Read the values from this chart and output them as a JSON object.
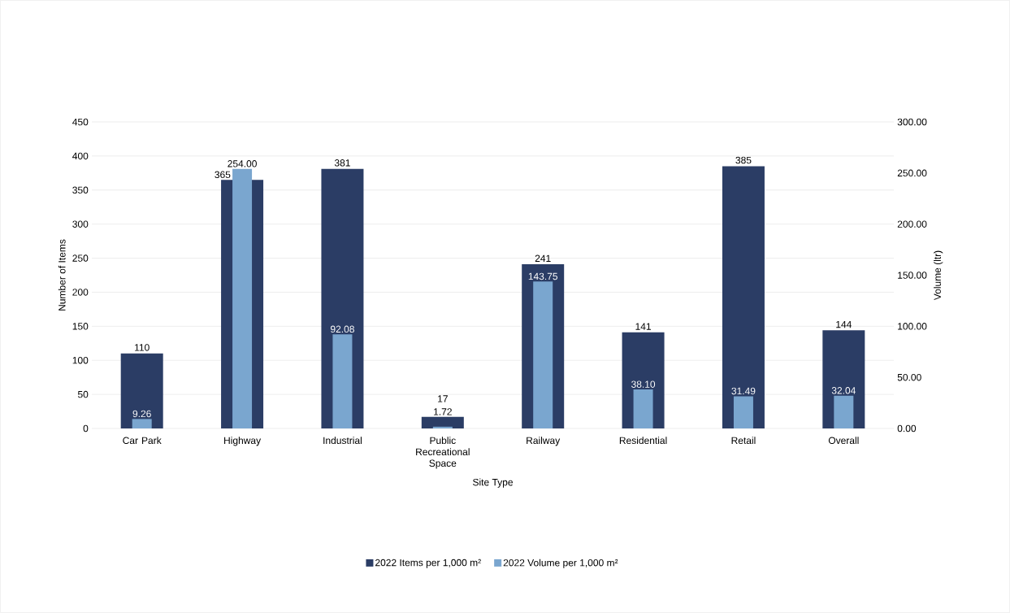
{
  "chart_data": {
    "type": "bar",
    "categories": [
      "Car Park",
      "Highway",
      "Industrial",
      "Public Recreational Space",
      "Railway",
      "Residential",
      "Retail",
      "Overall"
    ],
    "series": [
      {
        "name": "2022 Items per 1,000 m²",
        "color": "#2b3d65",
        "values": [
          110,
          365,
          381,
          17,
          241,
          141,
          385,
          144
        ],
        "value_labels": [
          "110",
          "365",
          "381",
          "17",
          "241",
          "141",
          "385",
          "144"
        ]
      },
      {
        "name": "2022 Volume per 1,000 m²",
        "color": "#7aa6cf",
        "axis": "y2",
        "values": [
          9.26,
          254.0,
          92.08,
          1.72,
          143.75,
          38.1,
          31.49,
          32.04
        ],
        "value_labels": [
          "9.26",
          "254.00",
          "92.08",
          "1.72",
          "143.75",
          "38.10",
          "31.49",
          "32.04"
        ]
      }
    ],
    "xlabel": "Site Type",
    "ylabel": "Number  of Items",
    "y2label": "Volume (ltr)",
    "ylim": [
      0,
      450
    ],
    "yticks": [
      0,
      50,
      100,
      150,
      200,
      250,
      300,
      350,
      400,
      450
    ],
    "y2lim": [
      0,
      300
    ],
    "y2ticks": [
      {
        "value": 0,
        "label": "0.00"
      },
      {
        "value": 50,
        "label": "50.00"
      },
      {
        "value": 100,
        "label": "100.00"
      },
      {
        "value": 150,
        "label": "150.00"
      },
      {
        "value": 200,
        "label": "200.00"
      },
      {
        "value": 250,
        "label": "250.00"
      },
      {
        "value": 300,
        "label": "300.00"
      }
    ],
    "grid": "y",
    "legend": "bottom"
  }
}
